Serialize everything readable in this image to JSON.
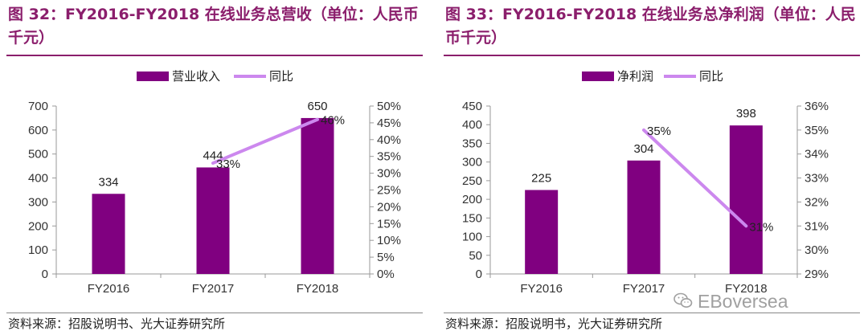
{
  "left": {
    "title": "图 32：FY2016-FY2018 在线业务总营收（单位：人民币千元）",
    "source": "资料来源：招股说明书、光大证券研究所"
  },
  "right": {
    "title": "图 33：FY2016-FY2018 在线业务总净利润（单位：人民币千元）",
    "source": "资料来源：招股说明书，光大证券研究所"
  },
  "watermark": "EBoversea",
  "colors": {
    "bar": "#800080",
    "line": "#cc88ee",
    "title": "#8b1e6c"
  },
  "chart_data": [
    {
      "type": "bar",
      "title": "",
      "categories": [
        "FY2016",
        "FY2017",
        "FY2018"
      ],
      "series": [
        {
          "name": "营业收入",
          "kind": "bar",
          "axis": "left",
          "values": [
            334,
            444,
            650
          ],
          "labels": [
            "334",
            "444",
            "650"
          ]
        },
        {
          "name": "同比",
          "kind": "line",
          "axis": "right",
          "values": [
            null,
            33,
            46
          ],
          "labels": [
            "",
            "33%",
            "46%"
          ]
        }
      ],
      "y_left": {
        "min": 0,
        "max": 700,
        "ticks": [
          "0",
          "100",
          "200",
          "300",
          "400",
          "500",
          "600",
          "700"
        ]
      },
      "y_right": {
        "min": 0,
        "max": 50,
        "unit": "%",
        "ticks": [
          "0%",
          "5%",
          "10%",
          "15%",
          "20%",
          "25%",
          "30%",
          "35%",
          "40%",
          "45%",
          "50%"
        ]
      },
      "legend": "top-center",
      "grid": false
    },
    {
      "type": "bar",
      "title": "",
      "categories": [
        "FY2016",
        "FY2017",
        "FY2018"
      ],
      "series": [
        {
          "name": "净利润",
          "kind": "bar",
          "axis": "left",
          "values": [
            225,
            304,
            398
          ],
          "labels": [
            "225",
            "304",
            "398"
          ]
        },
        {
          "name": "同比",
          "kind": "line",
          "axis": "right",
          "values": [
            null,
            35,
            31
          ],
          "labels": [
            "",
            "35%",
            "31%"
          ]
        }
      ],
      "y_left": {
        "min": 0,
        "max": 450,
        "ticks": [
          "0",
          "50",
          "100",
          "150",
          "200",
          "250",
          "300",
          "350",
          "400",
          "450"
        ]
      },
      "y_right": {
        "min": 29,
        "max": 36,
        "unit": "%",
        "ticks": [
          "29%",
          "30%",
          "31%",
          "32%",
          "33%",
          "34%",
          "35%",
          "36%"
        ]
      },
      "legend": "top-center",
      "grid": false
    }
  ]
}
